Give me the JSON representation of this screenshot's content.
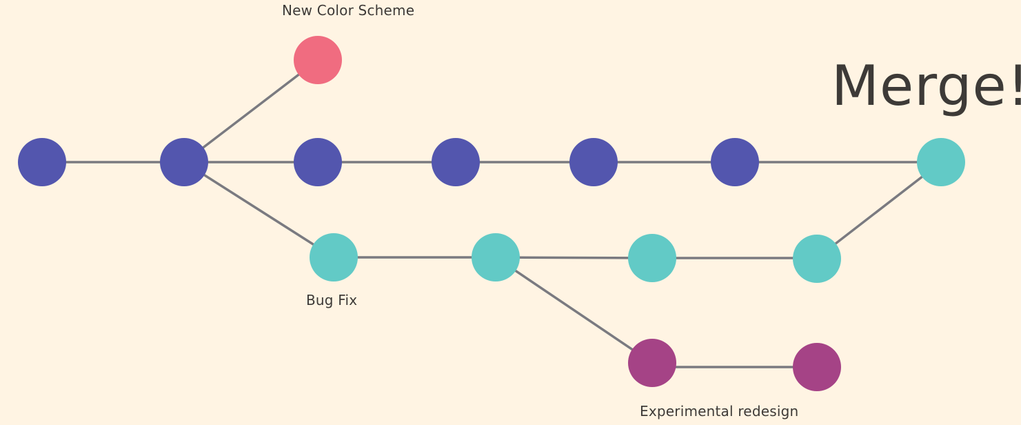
{
  "labels": {
    "new_color_scheme": "New Color Scheme",
    "bug_fix": "Bug Fix",
    "experimental_redesign": "Experimental redesign",
    "merge": "Merge!"
  },
  "colors": {
    "background": "#fff4e3",
    "main_branch": "#5356ae",
    "bugfix_branch": "#62cac6",
    "color_scheme_branch": "#f06c80",
    "experimental_branch": "#a54386",
    "edge": "#7a7a80",
    "text": "#3d3a37"
  }
}
